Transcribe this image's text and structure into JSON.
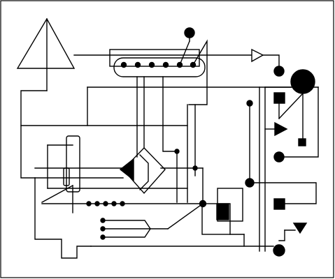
{
  "diagram": {
    "kind": "abstract-schematic",
    "stroke_color": "#000000",
    "fill_color": "#000000",
    "background": "#ffffff",
    "components": [
      "triangle-symbol",
      "pickup-rail-with-dots",
      "output-arrow",
      "large-dot-node",
      "diamond-junction",
      "rectangular-switch",
      "square-node",
      "triangle-arrow-right",
      "triangle-arrow-down",
      "bus-dots"
    ]
  }
}
